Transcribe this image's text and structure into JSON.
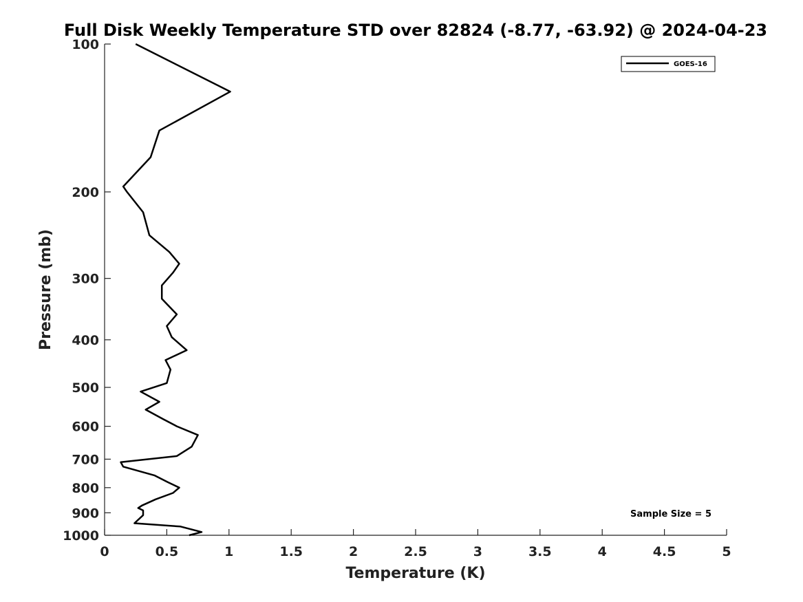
{
  "chart_data": {
    "type": "line",
    "title": "Full Disk Weekly Temperature STD over 82824 (-8.77, -63.92) @ 2024-04-23",
    "xlabel": "Temperature (K)",
    "ylabel": "Pressure (mb)",
    "xlim": [
      0,
      5
    ],
    "ylim": [
      100,
      1000
    ],
    "y_scale": "log",
    "y_reversed": true,
    "x_ticks": [
      "0",
      "0.5",
      "1",
      "1.5",
      "2",
      "2.5",
      "3",
      "3.5",
      "4",
      "4.5",
      "5"
    ],
    "y_ticks": [
      "100",
      "200",
      "300",
      "400",
      "500",
      "600",
      "700",
      "800",
      "900",
      "1000"
    ],
    "grid": false,
    "legend": {
      "placement": "top-right",
      "entries": [
        "GOES-16"
      ]
    },
    "annotation": "Sample Size = 5",
    "series": [
      {
        "name": "GOES-16",
        "color": "#000000",
        "x": [
          0.25,
          1.01,
          0.44,
          0.37,
          0.15,
          0.18,
          0.31,
          0.36,
          0.52,
          0.6,
          0.55,
          0.46,
          0.46,
          0.58,
          0.5,
          0.54,
          0.66,
          0.49,
          0.53,
          0.5,
          0.29,
          0.44,
          0.33,
          0.47,
          0.58,
          0.75,
          0.7,
          0.58,
          0.13,
          0.15,
          0.4,
          0.51,
          0.6,
          0.55,
          0.41,
          0.3,
          0.27,
          0.31,
          0.31,
          0.24,
          0.61,
          0.78,
          0.68
        ],
        "y": [
          100,
          125,
          150,
          170,
          195,
          200,
          220,
          245,
          265,
          280,
          292,
          310,
          330,
          355,
          375,
          395,
          420,
          440,
          460,
          490,
          510,
          535,
          555,
          580,
          600,
          625,
          660,
          690,
          710,
          725,
          755,
          780,
          800,
          820,
          845,
          870,
          880,
          890,
          910,
          945,
          960,
          985,
          1000
        ]
      }
    ]
  }
}
